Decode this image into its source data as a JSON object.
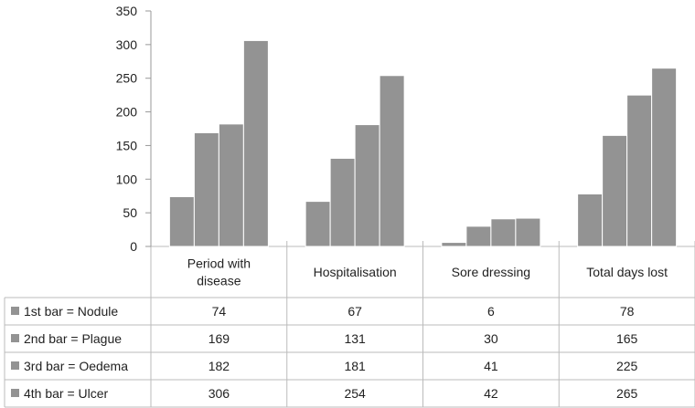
{
  "chart_data": {
    "type": "bar",
    "categories": [
      [
        "Period with",
        "disease"
      ],
      [
        "Hospitalisation"
      ],
      [
        "Sore dressing"
      ],
      [
        "Total days lost"
      ]
    ],
    "ylim": [
      0,
      350
    ],
    "yticks": [
      0,
      50,
      100,
      150,
      200,
      250,
      300,
      350
    ],
    "grid": false,
    "series": [
      {
        "name": "1st bar = Nodule",
        "values": [
          74,
          67,
          6,
          78
        ]
      },
      {
        "name": "2nd bar = Plague",
        "values": [
          169,
          131,
          30,
          165
        ]
      },
      {
        "name": "3rd bar = Oedema",
        "values": [
          182,
          181,
          41,
          225
        ]
      },
      {
        "name": "4th bar = Ulcer",
        "values": [
          306,
          254,
          42,
          265
        ]
      }
    ],
    "colors": {
      "bar_fill": "#939393",
      "bar_stroke": "#ffffff",
      "axis": "#999999",
      "table_border": "#bbbbbb",
      "legend_key": "#939393",
      "text": "#222222"
    }
  }
}
